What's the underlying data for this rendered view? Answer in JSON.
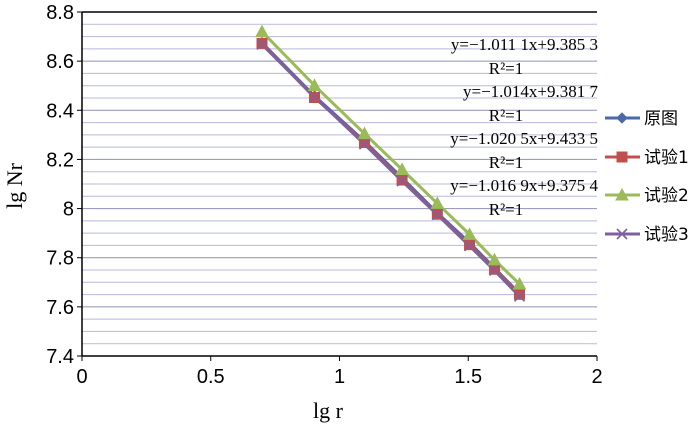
{
  "chart_data": {
    "type": "line",
    "xlabel": "lg r",
    "ylabel": "lg Nr",
    "xlim": [
      0,
      2
    ],
    "ylim": [
      7.4,
      8.8
    ],
    "x_ticks": [
      "0",
      "0.5",
      "1",
      "1.5",
      "2"
    ],
    "y_ticks": [
      "7.4",
      "7.6",
      "7.8",
      "8",
      "8.2",
      "8.4",
      "8.6",
      "8.8"
    ],
    "grid": "horizontal",
    "legend_position": "right",
    "series": [
      {
        "name": "原图",
        "color": "#4a6aa8",
        "marker": "diamond",
        "x": [
          0.699,
          0.903,
          1.097,
          1.243,
          1.38,
          1.505,
          1.602,
          1.699
        ],
        "y": [
          8.675,
          8.458,
          8.274,
          8.125,
          7.982,
          7.861,
          7.758,
          7.654
        ]
      },
      {
        "name": "试验1",
        "color": "#c0504d",
        "marker": "square",
        "x": [
          0.699,
          0.903,
          1.097,
          1.243,
          1.38,
          1.505,
          1.602,
          1.699
        ],
        "y": [
          8.672,
          8.452,
          8.269,
          8.116,
          7.977,
          7.853,
          7.753,
          7.651
        ]
      },
      {
        "name": "试验2",
        "color": "#9bbb59",
        "marker": "triangle",
        "x": [
          0.699,
          0.903,
          1.097,
          1.243,
          1.38,
          1.505,
          1.602,
          1.699
        ],
        "y": [
          8.72,
          8.501,
          8.305,
          8.159,
          8.021,
          7.895,
          7.791,
          7.693
        ]
      },
      {
        "name": "试验3",
        "color": "#7f609e",
        "marker": "x",
        "x": [
          0.699,
          0.903,
          1.097,
          1.243,
          1.38,
          1.505,
          1.602,
          1.699
        ],
        "y": [
          8.668,
          8.455,
          8.262,
          8.112,
          7.975,
          7.848,
          7.748,
          7.643
        ]
      }
    ],
    "annotations": [
      {
        "equation": "y=−1.011 1x+9.385 3",
        "r2": "R²=1"
      },
      {
        "equation": "y=−1.014x+9.381 7",
        "r2": "R²=1"
      },
      {
        "equation": "y=−1.020 5x+9.433 5",
        "r2": "R²=1"
      },
      {
        "equation": "y=−1.016 9x+9.375 4",
        "r2": "R²=1"
      }
    ]
  }
}
